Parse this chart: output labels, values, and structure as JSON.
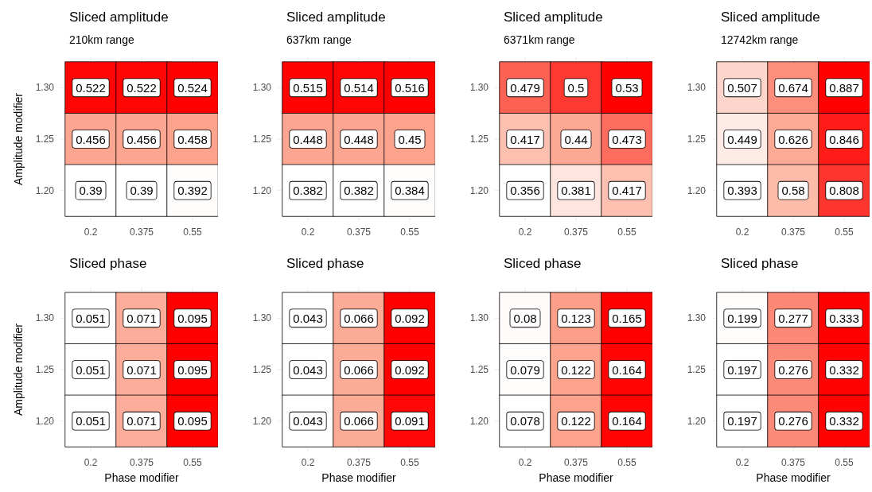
{
  "chart_data": [
    {
      "type": "heatmap",
      "title": "Sliced amplitude",
      "subtitle": "210km range",
      "ylabel": "Amplitude modifier",
      "categories": [
        "0.2",
        "0.375",
        "0.55"
      ],
      "y_categories": [
        "1.30",
        "1.25",
        "1.20"
      ],
      "cells": [
        [
          0.522,
          0.522,
          0.524
        ],
        [
          0.456,
          0.456,
          0.458
        ],
        [
          0.39,
          0.39,
          0.392
        ]
      ],
      "color": "#ff0000",
      "data_labels": true,
      "grid": true
    },
    {
      "type": "heatmap",
      "title": "Sliced amplitude",
      "subtitle": "637km range",
      "categories": [
        "0.2",
        "0.375",
        "0.55"
      ],
      "y_categories": [
        "1.30",
        "1.25",
        "1.20"
      ],
      "cells": [
        [
          0.515,
          0.514,
          0.516
        ],
        [
          0.448,
          0.448,
          0.45
        ],
        [
          0.382,
          0.382,
          0.384
        ]
      ],
      "color": "#ff0000",
      "data_labels": true,
      "grid": true
    },
    {
      "type": "heatmap",
      "title": "Sliced amplitude",
      "subtitle": "6371km range",
      "categories": [
        "0.2",
        "0.375",
        "0.55"
      ],
      "y_categories": [
        "1.30",
        "1.25",
        "1.20"
      ],
      "cells": [
        [
          0.479,
          0.5,
          0.53
        ],
        [
          0.417,
          0.44,
          0.473
        ],
        [
          0.356,
          0.381,
          0.417
        ]
      ],
      "color": "#ff0000",
      "data_labels": true,
      "grid": true
    },
    {
      "type": "heatmap",
      "title": "Sliced amplitude",
      "subtitle": "12742km range",
      "categories": [
        "0.2",
        "0.375",
        "0.55"
      ],
      "y_categories": [
        "1.30",
        "1.25",
        "1.20"
      ],
      "cells": [
        [
          0.507,
          0.674,
          0.887
        ],
        [
          0.449,
          0.626,
          0.846
        ],
        [
          0.393,
          0.58,
          0.808
        ]
      ],
      "color": "#ff0000",
      "data_labels": true,
      "grid": true
    },
    {
      "type": "heatmap",
      "title": "Sliced phase",
      "xlabel": "Phase modifier",
      "ylabel": "Amplitude modifier",
      "categories": [
        "0.2",
        "0.375",
        "0.55"
      ],
      "y_categories": [
        "1.30",
        "1.25",
        "1.20"
      ],
      "cells": [
        [
          0.051,
          0.071,
          0.095
        ],
        [
          0.051,
          0.071,
          0.095
        ],
        [
          0.051,
          0.071,
          0.095
        ]
      ],
      "color": "#ff0000",
      "data_labels": true,
      "grid": true
    },
    {
      "type": "heatmap",
      "title": "Sliced phase",
      "xlabel": "Phase modifier",
      "categories": [
        "0.2",
        "0.375",
        "0.55"
      ],
      "y_categories": [
        "1.30",
        "1.25",
        "1.20"
      ],
      "cells": [
        [
          0.043,
          0.066,
          0.092
        ],
        [
          0.043,
          0.066,
          0.092
        ],
        [
          0.043,
          0.066,
          0.091
        ]
      ],
      "color": "#ff0000",
      "data_labels": true,
      "grid": true
    },
    {
      "type": "heatmap",
      "title": "Sliced phase",
      "xlabel": "Phase modifier",
      "categories": [
        "0.2",
        "0.375",
        "0.55"
      ],
      "y_categories": [
        "1.30",
        "1.25",
        "1.20"
      ],
      "cells": [
        [
          0.08,
          0.123,
          0.165
        ],
        [
          0.079,
          0.122,
          0.164
        ],
        [
          0.078,
          0.122,
          0.164
        ]
      ],
      "color": "#ff0000",
      "data_labels": true,
      "grid": true
    },
    {
      "type": "heatmap",
      "title": "Sliced phase",
      "xlabel": "Phase modifier",
      "categories": [
        "0.2",
        "0.375",
        "0.55"
      ],
      "y_categories": [
        "1.30",
        "1.25",
        "1.20"
      ],
      "cells": [
        [
          0.199,
          0.277,
          0.333
        ],
        [
          0.197,
          0.276,
          0.332
        ],
        [
          0.197,
          0.276,
          0.332
        ]
      ],
      "color": "#ff0000",
      "data_labels": true,
      "grid": true
    }
  ]
}
